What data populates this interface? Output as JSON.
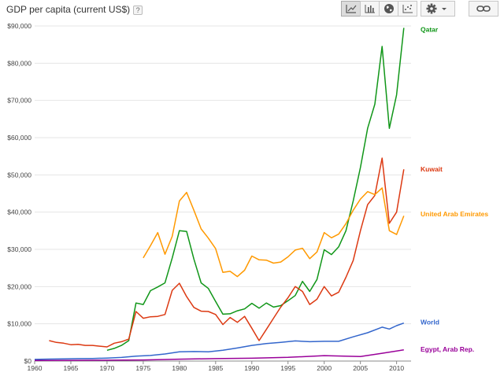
{
  "header": {
    "title": "GDP per capita (current US$)",
    "help_label": "?",
    "buttons": [
      {
        "name": "line-chart-icon",
        "active": true
      },
      {
        "name": "bar-chart-icon",
        "active": false
      },
      {
        "name": "map-globe-icon",
        "active": false
      },
      {
        "name": "scatter-chart-icon",
        "active": false
      },
      {
        "name": "settings-gear-icon",
        "active": false
      },
      {
        "name": "link-icon",
        "active": false
      }
    ]
  },
  "chart_data": {
    "type": "line",
    "title": "GDP per capita (current US$)",
    "xlabel": "",
    "ylabel": "",
    "xlim": [
      1960,
      2012
    ],
    "ylim": [
      0,
      90000
    ],
    "x_ticks": [
      1960,
      1965,
      1970,
      1975,
      1980,
      1985,
      1990,
      1995,
      2000,
      2005,
      2010
    ],
    "y_ticks": [
      0,
      10000,
      20000,
      30000,
      40000,
      50000,
      60000,
      70000,
      80000,
      90000
    ],
    "y_tick_labels": [
      "$0",
      "$10,000",
      "$20,000",
      "$30,000",
      "$40,000",
      "$50,000",
      "$60,000",
      "$70,000",
      "$80,000",
      "$90,000"
    ],
    "grid": "horizontal",
    "legend_placement": "right, at end of each line",
    "series": [
      {
        "name": "Qatar",
        "color": "#109618",
        "label_y": 89000,
        "x": [
          1970,
          1971,
          1972,
          1973,
          1974,
          1975,
          1976,
          1977,
          1978,
          1979,
          1980,
          1981,
          1982,
          1983,
          1984,
          1985,
          1986,
          1987,
          1988,
          1989,
          1990,
          1991,
          1992,
          1993,
          1994,
          1995,
          1996,
          1997,
          1998,
          1999,
          2000,
          2001,
          2002,
          2003,
          2004,
          2005,
          2006,
          2007,
          2008,
          2009,
          2010,
          2011
        ],
        "values": [
          2900,
          3400,
          4200,
          5500,
          15600,
          15200,
          18900,
          19900,
          21000,
          27700,
          35000,
          34800,
          27400,
          21000,
          19500,
          16000,
          12600,
          12700,
          13500,
          14000,
          15500,
          14200,
          15600,
          14500,
          14900,
          16200,
          17600,
          21400,
          18700,
          21900,
          29900,
          28600,
          30700,
          35000,
          43000,
          52000,
          62500,
          69000,
          84500,
          62500,
          71500,
          89500
        ]
      },
      {
        "name": "Kuwait",
        "color": "#dc3912",
        "label_y": 51500,
        "x": [
          1962,
          1963,
          1964,
          1965,
          1966,
          1967,
          1968,
          1969,
          1970,
          1971,
          1972,
          1973,
          1974,
          1975,
          1976,
          1977,
          1978,
          1979,
          1980,
          1981,
          1982,
          1983,
          1984,
          1985,
          1986,
          1987,
          1988,
          1989,
          1990,
          1991,
          1992,
          1993,
          1994,
          1995,
          1996,
          1997,
          1998,
          1999,
          2000,
          2001,
          2002,
          2003,
          2004,
          2005,
          2006,
          2007,
          2008,
          2009,
          2010,
          2011
        ],
        "values": [
          5500,
          5000,
          4800,
          4400,
          4500,
          4200,
          4200,
          4000,
          3800,
          4800,
          5200,
          5900,
          13300,
          11500,
          11900,
          12000,
          12500,
          19000,
          20900,
          17300,
          14400,
          13400,
          13300,
          12500,
          9800,
          11700,
          10400,
          12000,
          8800,
          5500,
          8500,
          11500,
          14500,
          17000,
          20000,
          18700,
          15200,
          16600,
          20000,
          17500,
          18500,
          22500,
          27000,
          35000,
          42000,
          44500,
          54500,
          37000,
          40000,
          51500
        ]
      },
      {
        "name": "United Arab Emirates",
        "color": "#ff9900",
        "label_y": 39500,
        "x": [
          1975,
          1976,
          1977,
          1978,
          1979,
          1980,
          1981,
          1982,
          1983,
          1984,
          1985,
          1986,
          1987,
          1988,
          1989,
          1990,
          1991,
          1992,
          1993,
          1994,
          1995,
          1996,
          1997,
          1998,
          1999,
          2000,
          2001,
          2002,
          2003,
          2004,
          2005,
          2006,
          2007,
          2008,
          2009,
          2010,
          2011
        ],
        "values": [
          27700,
          31000,
          34500,
          28700,
          33500,
          43000,
          45300,
          40500,
          35500,
          33000,
          30200,
          23800,
          24100,
          22700,
          24400,
          28200,
          27200,
          27100,
          26300,
          26600,
          28000,
          29800,
          30300,
          27500,
          29300,
          34500,
          33100,
          34100,
          36900,
          40500,
          43500,
          45500,
          44700,
          46500,
          35000,
          34000,
          39000
        ]
      },
      {
        "name": "World",
        "color": "#3366cc",
        "label_y": 10500,
        "x": [
          1960,
          1962,
          1964,
          1966,
          1968,
          1970,
          1972,
          1974,
          1976,
          1978,
          1980,
          1982,
          1984,
          1986,
          1988,
          1990,
          1992,
          1994,
          1996,
          1998,
          2000,
          2002,
          2004,
          2006,
          2008,
          2009,
          2010,
          2011
        ],
        "values": [
          450,
          520,
          580,
          650,
          700,
          800,
          980,
          1300,
          1500,
          1900,
          2500,
          2550,
          2500,
          2900,
          3500,
          4200,
          4700,
          5000,
          5400,
          5200,
          5300,
          5300,
          6500,
          7600,
          9100,
          8600,
          9500,
          10200
        ]
      },
      {
        "name": "Egypt, Arab Rep.",
        "color": "#990099",
        "label_y": 3200,
        "x": [
          1960,
          1965,
          1970,
          1975,
          1980,
          1985,
          1990,
          1995,
          2000,
          2005,
          2008,
          2011
        ],
        "values": [
          150,
          180,
          230,
          300,
          500,
          650,
          750,
          1000,
          1450,
          1200,
          2100,
          3000
        ]
      }
    ]
  }
}
